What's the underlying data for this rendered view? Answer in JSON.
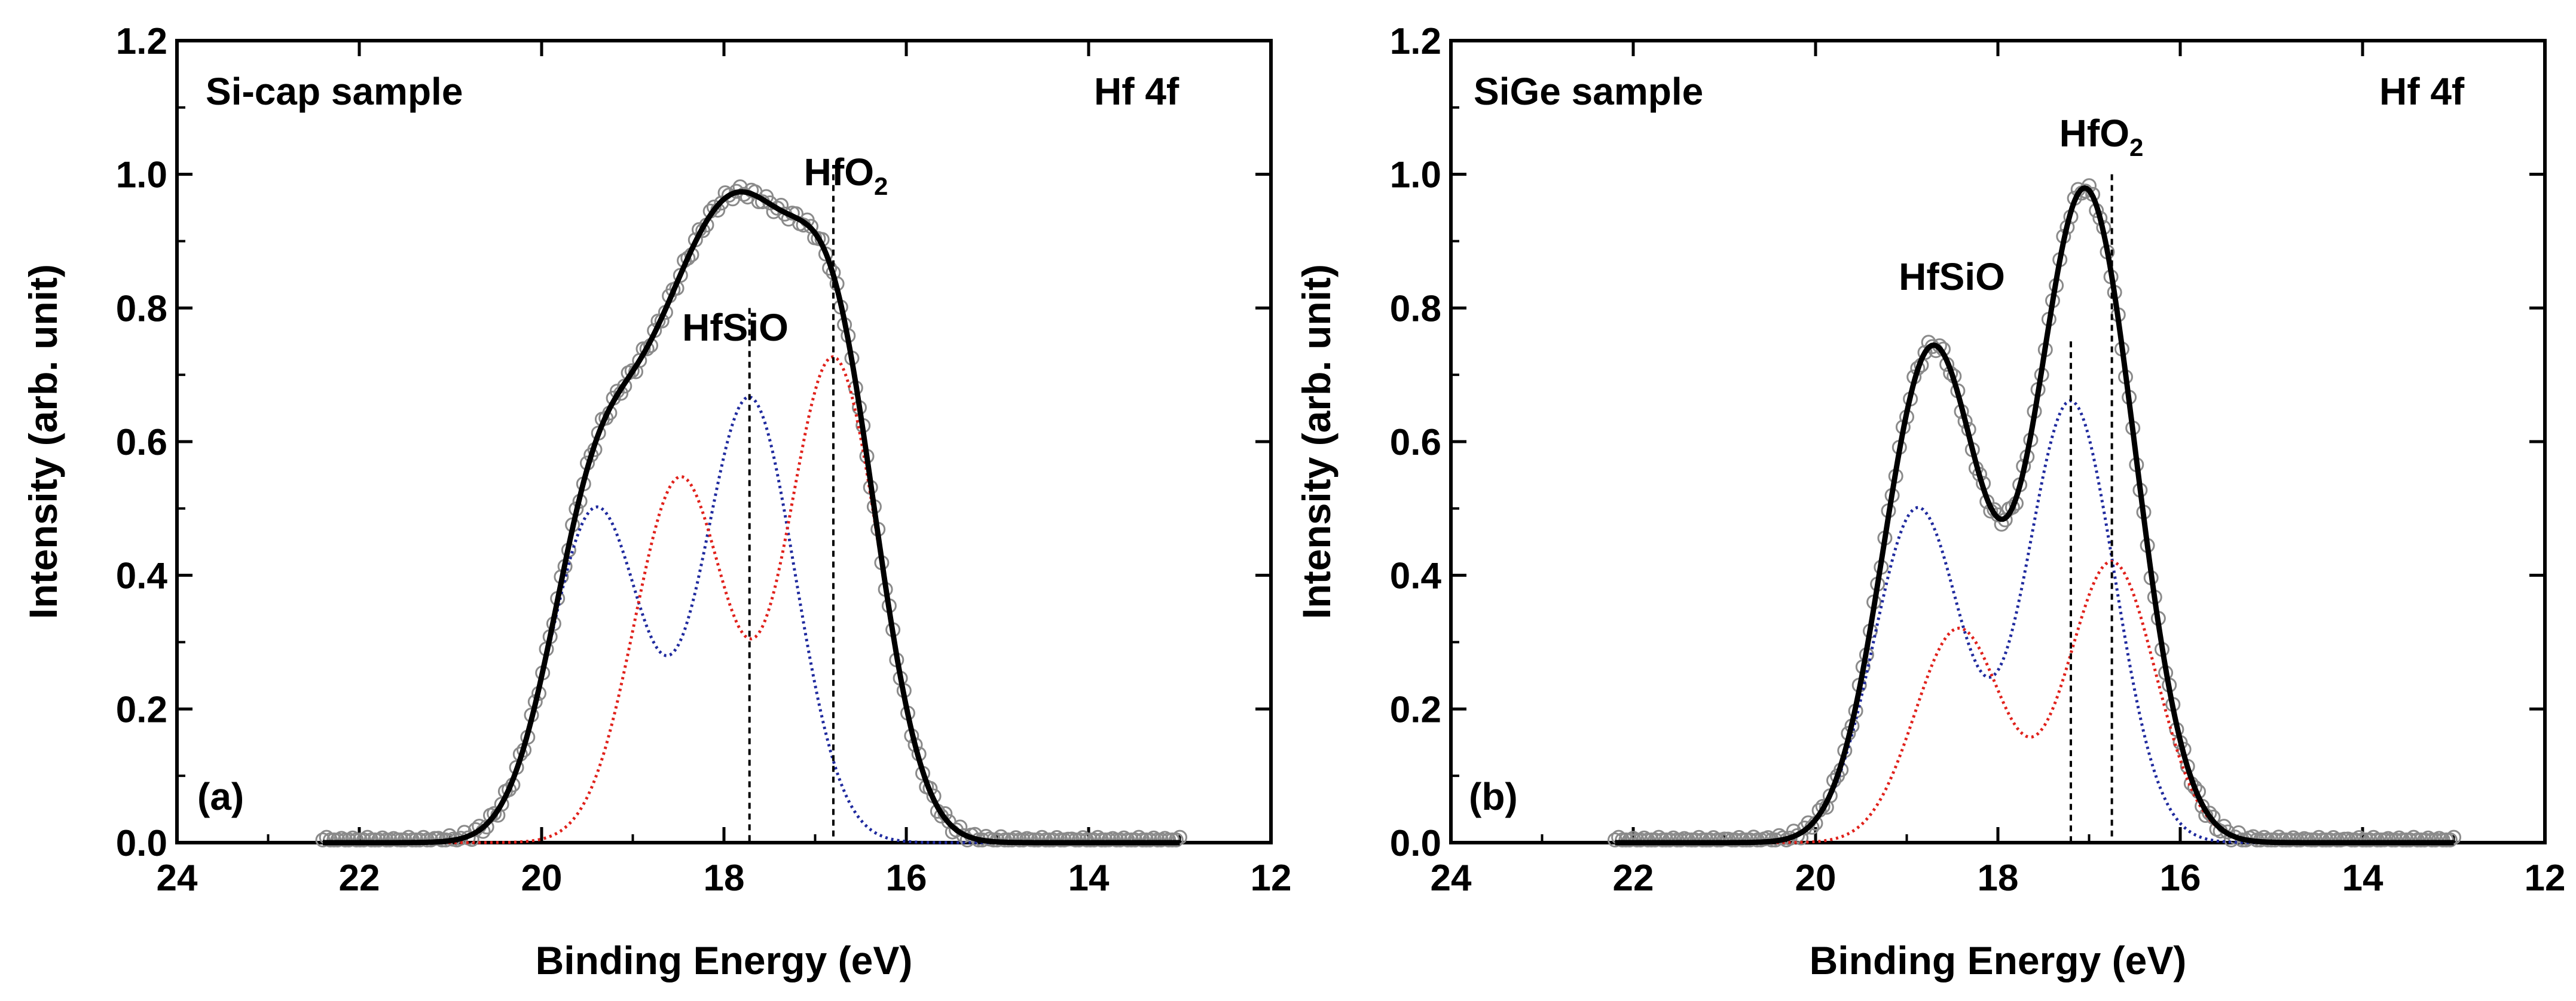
{
  "chart_data": [
    {
      "type": "line",
      "panel_label": "(a)",
      "title": "Si-cap sample",
      "region_label": "Hf 4f",
      "xlabel": "Binding Energy (eV)",
      "ylabel": "Intensity (arb. unit)",
      "xlim": [
        24,
        12
      ],
      "ylim": [
        0,
        1.2
      ],
      "xticks": [
        24,
        22,
        20,
        18,
        16,
        14,
        12
      ],
      "yticks": [
        0.0,
        0.2,
        0.4,
        0.6,
        0.8,
        1.0,
        1.2
      ],
      "grid": false,
      "x_range": [
        13.0,
        22.4
      ],
      "components": [
        {
          "name": "HfSiO",
          "color": "#1f2a9e",
          "style": "dotted",
          "peaks": [
            {
              "center": 17.72,
              "amplitude": 0.665,
              "sigma": 0.5
            },
            {
              "center": 19.4,
              "amplitude": 0.5,
              "sigma": 0.5
            }
          ]
        },
        {
          "name": "HfO2",
          "color": "#e0211b",
          "style": "dotted",
          "peaks": [
            {
              "center": 16.8,
              "amplitude": 0.725,
              "sigma": 0.5
            },
            {
              "center": 18.48,
              "amplitude": 0.545,
              "sigma": 0.5
            }
          ]
        }
      ],
      "series": [
        {
          "name": "measured",
          "marker": "open-circle",
          "color": "#8a8a8a"
        },
        {
          "name": "fit envelope",
          "color": "#000000",
          "style": "solid"
        }
      ],
      "annotations": [
        {
          "text": "HfSiO",
          "x": 17.72
        },
        {
          "text": "HfO",
          "subscript": "2",
          "x": 16.8
        }
      ],
      "reference_lines": [
        {
          "x": 17.72,
          "y_top": 0.8
        },
        {
          "x": 16.8,
          "y_top": 1.0
        }
      ]
    },
    {
      "type": "line",
      "panel_label": "(b)",
      "title": "SiGe sample",
      "region_label": "Hf 4f",
      "xlabel": "Binding Energy (eV)",
      "ylabel": "Intensity (arb. unit)",
      "xlim": [
        24,
        12
      ],
      "ylim": [
        0,
        1.2
      ],
      "xticks": [
        24,
        22,
        20,
        18,
        16,
        14,
        12
      ],
      "yticks": [
        0.0,
        0.2,
        0.4,
        0.6,
        0.8,
        1.0,
        1.2
      ],
      "grid": false,
      "x_range": [
        13.0,
        22.2
      ],
      "components": [
        {
          "name": "HfSiO",
          "color": "#1f2a9e",
          "style": "dotted",
          "peaks": [
            {
              "center": 17.2,
              "amplitude": 0.66,
              "sigma": 0.48
            },
            {
              "center": 18.88,
              "amplitude": 0.5,
              "sigma": 0.48
            }
          ]
        },
        {
          "name": "HfO2",
          "color": "#e0211b",
          "style": "dotted",
          "peaks": [
            {
              "center": 16.75,
              "amplitude": 0.42,
              "sigma": 0.48
            },
            {
              "center": 18.43,
              "amplitude": 0.32,
              "sigma": 0.48
            }
          ]
        }
      ],
      "series": [
        {
          "name": "measured",
          "marker": "open-circle",
          "color": "#8a8a8a"
        },
        {
          "name": "fit envelope",
          "color": "#000000",
          "style": "solid"
        }
      ],
      "annotations": [
        {
          "text": "HfSiO",
          "x": 18.4
        },
        {
          "text": "HfO",
          "subscript": "2",
          "x": 16.5
        }
      ],
      "reference_lines": [
        {
          "x": 17.2,
          "y_top": 0.75
        },
        {
          "x": 16.75,
          "y_top": 1.0
        }
      ]
    }
  ]
}
